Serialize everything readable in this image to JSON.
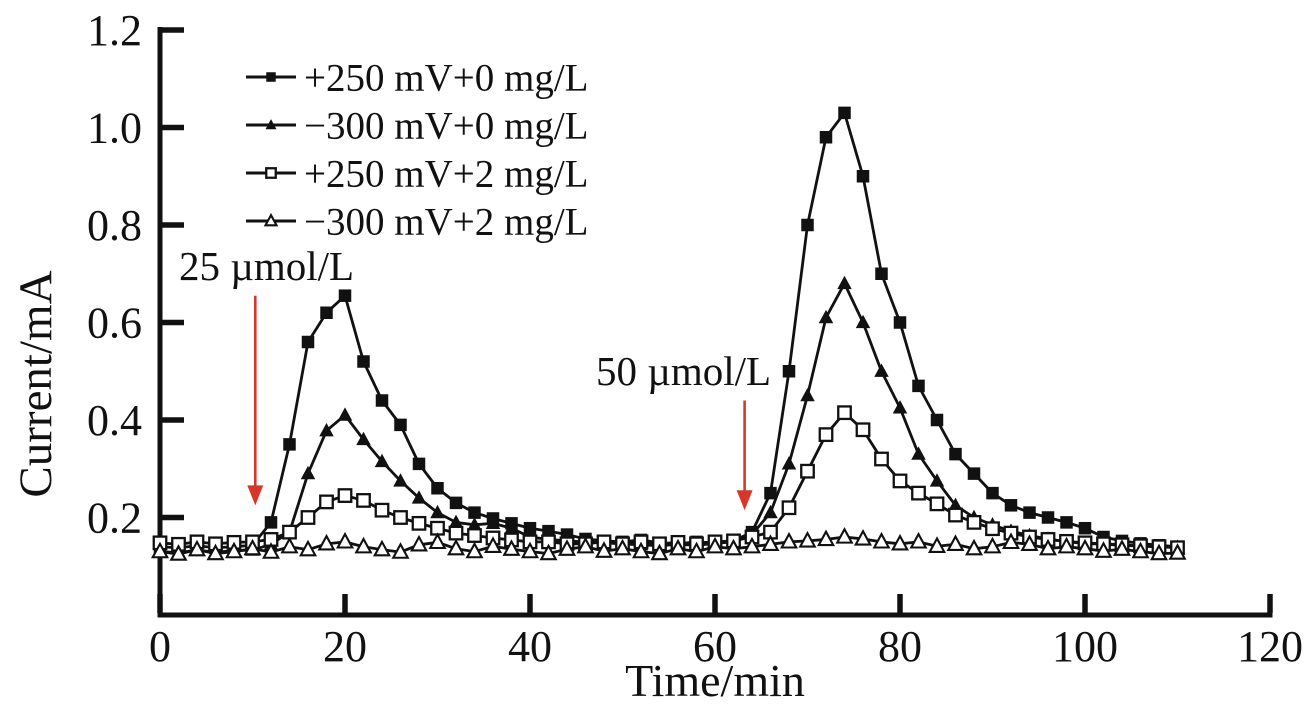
{
  "chart_data": {
    "type": "line",
    "title": "",
    "xlabel": "Time/min",
    "ylabel": "Current/mA",
    "xlim": [
      0,
      120
    ],
    "ylim": [
      0,
      1.2
    ],
    "x_ticks": [
      0,
      20,
      40,
      60,
      80,
      100,
      120
    ],
    "x_tick_labels": [
      "0",
      "20",
      "40",
      "60",
      "80",
      "100",
      "120"
    ],
    "y_ticks": [
      0.2,
      0.4,
      0.6,
      0.8,
      1.0,
      1.2
    ],
    "y_tick_labels": [
      "0.2",
      "0.4",
      "0.6",
      "0.8",
      "1.0",
      "1.2"
    ],
    "grid": false,
    "legend_position": "upper-left-inside",
    "x": [
      0,
      2,
      4,
      6,
      8,
      10,
      12,
      14,
      16,
      18,
      20,
      22,
      24,
      26,
      28,
      30,
      32,
      34,
      36,
      38,
      40,
      42,
      44,
      46,
      48,
      50,
      52,
      54,
      56,
      58,
      60,
      62,
      64,
      66,
      68,
      70,
      72,
      74,
      76,
      78,
      80,
      82,
      84,
      86,
      88,
      90,
      92,
      94,
      96,
      98,
      100,
      102,
      104,
      106,
      108,
      110
    ],
    "series": [
      {
        "name": "+250 mV+0 mg/L",
        "marker": "filled-square",
        "values": [
          0.14,
          0.138,
          0.142,
          0.138,
          0.14,
          0.143,
          0.19,
          0.35,
          0.56,
          0.62,
          0.655,
          0.52,
          0.44,
          0.39,
          0.31,
          0.26,
          0.23,
          0.21,
          0.198,
          0.188,
          0.178,
          0.172,
          0.165,
          0.156,
          0.152,
          0.15,
          0.154,
          0.148,
          0.146,
          0.15,
          0.148,
          0.152,
          0.17,
          0.25,
          0.5,
          0.8,
          0.98,
          1.03,
          0.9,
          0.7,
          0.6,
          0.47,
          0.4,
          0.33,
          0.29,
          0.25,
          0.225,
          0.21,
          0.2,
          0.19,
          0.178,
          0.16,
          0.152,
          0.147,
          0.143,
          0.14
        ]
      },
      {
        "name": "−300 mV+0 mg/L",
        "marker": "filled-triangle",
        "values": [
          0.13,
          0.128,
          0.133,
          0.129,
          0.132,
          0.133,
          0.145,
          0.17,
          0.29,
          0.378,
          0.41,
          0.36,
          0.315,
          0.275,
          0.24,
          0.21,
          0.19,
          0.185,
          0.188,
          0.178,
          0.16,
          0.155,
          0.152,
          0.15,
          0.148,
          0.146,
          0.144,
          0.142,
          0.145,
          0.143,
          0.147,
          0.15,
          0.165,
          0.21,
          0.31,
          0.45,
          0.61,
          0.68,
          0.6,
          0.5,
          0.425,
          0.33,
          0.275,
          0.225,
          0.2,
          0.185,
          0.172,
          0.163,
          0.156,
          0.15,
          0.147,
          0.145,
          0.143,
          0.141,
          0.14,
          0.139
        ]
      },
      {
        "name": "+250 mV+2 mg/L",
        "marker": "open-square",
        "values": [
          0.148,
          0.145,
          0.15,
          0.146,
          0.149,
          0.15,
          0.155,
          0.17,
          0.2,
          0.232,
          0.245,
          0.235,
          0.215,
          0.2,
          0.188,
          0.178,
          0.168,
          0.163,
          0.158,
          0.154,
          0.15,
          0.15,
          0.146,
          0.146,
          0.15,
          0.146,
          0.15,
          0.146,
          0.149,
          0.146,
          0.15,
          0.152,
          0.16,
          0.17,
          0.22,
          0.295,
          0.37,
          0.415,
          0.38,
          0.32,
          0.275,
          0.25,
          0.228,
          0.205,
          0.19,
          0.177,
          0.168,
          0.16,
          0.155,
          0.151,
          0.148,
          0.146,
          0.144,
          0.142,
          0.14,
          0.138
        ]
      },
      {
        "name": "−300 mV+2 mg/L",
        "marker": "open-triangle",
        "values": [
          0.13,
          0.125,
          0.134,
          0.126,
          0.13,
          0.136,
          0.129,
          0.14,
          0.134,
          0.146,
          0.15,
          0.14,
          0.134,
          0.129,
          0.144,
          0.149,
          0.136,
          0.13,
          0.141,
          0.135,
          0.13,
          0.126,
          0.135,
          0.14,
          0.131,
          0.136,
          0.13,
          0.126,
          0.136,
          0.13,
          0.14,
          0.136,
          0.14,
          0.145,
          0.15,
          0.152,
          0.155,
          0.16,
          0.156,
          0.15,
          0.146,
          0.15,
          0.141,
          0.145,
          0.136,
          0.14,
          0.149,
          0.145,
          0.136,
          0.14,
          0.136,
          0.131,
          0.135,
          0.13,
          0.126,
          0.127
        ]
      }
    ],
    "annotations": [
      {
        "text": "25 µmol/L",
        "arrow_t": 10.3,
        "arrow_v_from": 0.655,
        "arrow_v_to": 0.225
      },
      {
        "text": "50 µmol/L",
        "arrow_t": 63.2,
        "arrow_v_from": 0.44,
        "arrow_v_to": 0.215
      }
    ],
    "colors": {
      "series": "#111111",
      "arrow": "#d5382b",
      "text": "#111111"
    }
  }
}
